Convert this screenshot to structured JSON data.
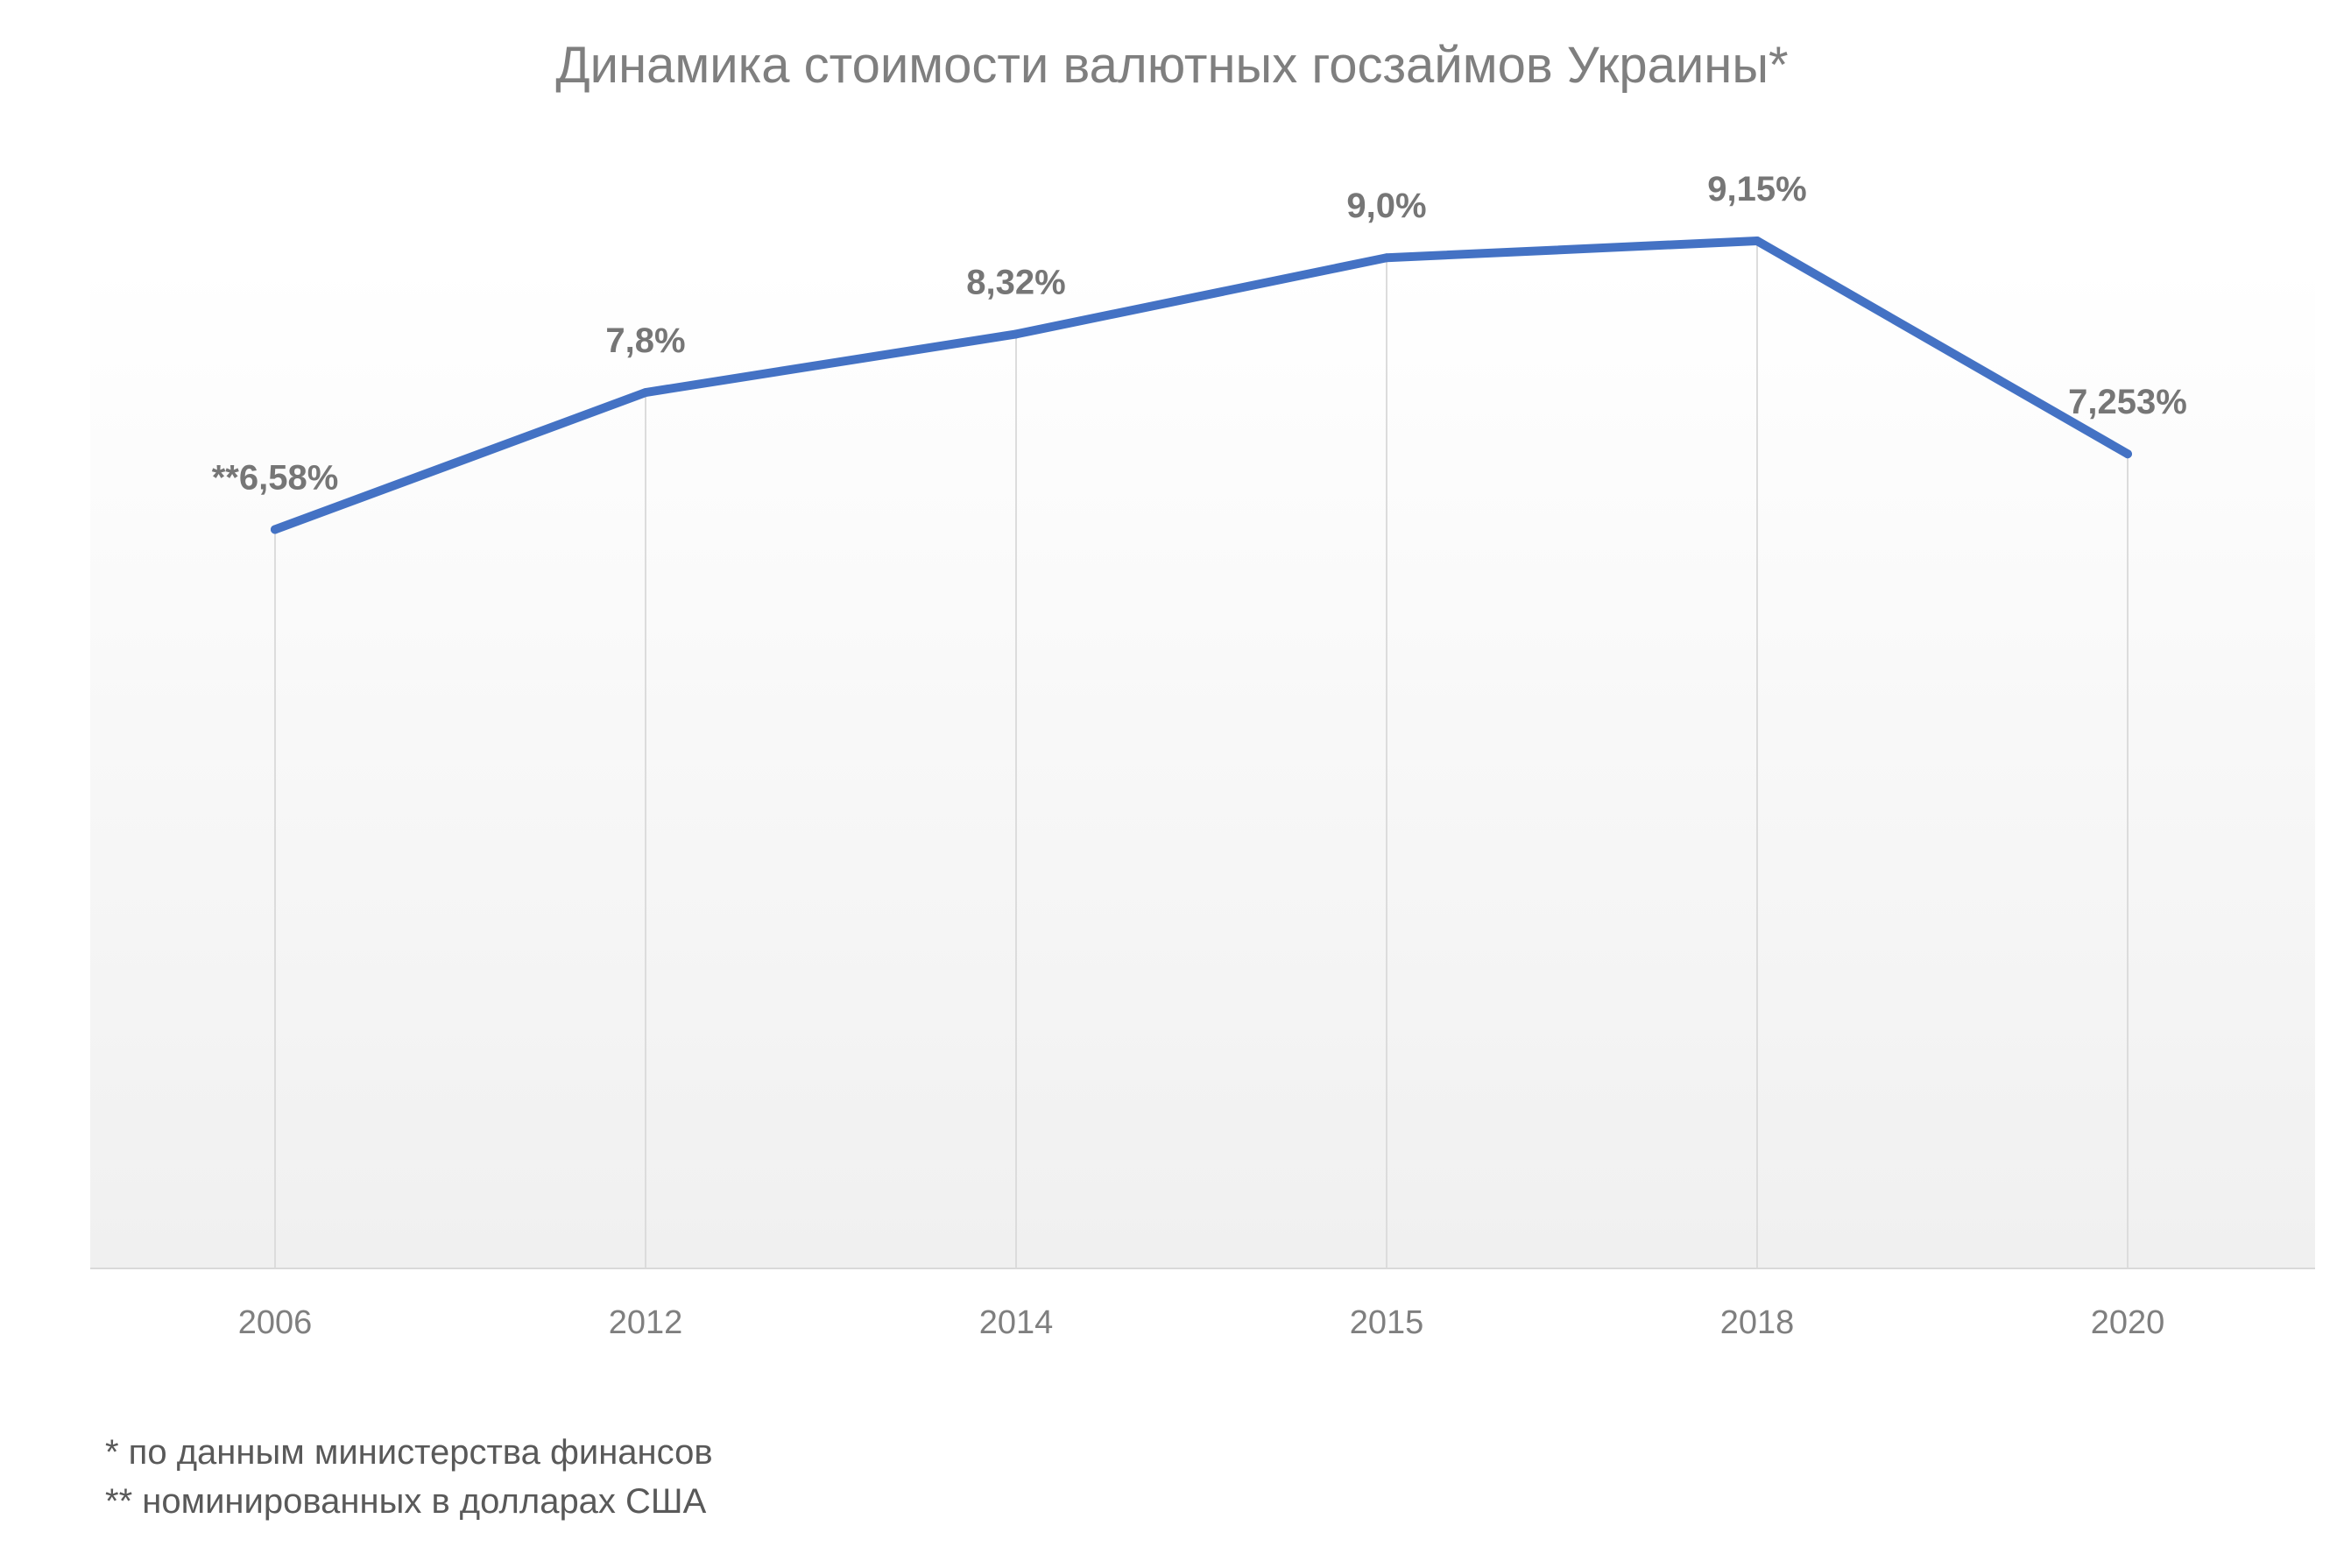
{
  "chart_data": {
    "type": "line",
    "title": "Динамика стоимости валютных госзаймов Украины*",
    "categories": [
      "2006",
      "2012",
      "2014",
      "2015",
      "2018",
      "2020"
    ],
    "series": [
      {
        "values": [
          6.58,
          7.8,
          8.32,
          9.0,
          9.15,
          7.253
        ],
        "labels": [
          "**6,58%",
          "7,8%",
          "8,32%",
          "9,0%",
          "9,15%",
          "7,253%"
        ],
        "color": "#4472c4"
      }
    ],
    "ylim": [
      0,
      9.15
    ],
    "grid": "vertical",
    "legend": "none"
  },
  "footnotes": [
    "* по данным министерства финансов",
    "** номинированных в долларах США"
  ],
  "colors": {
    "line": "#4472c4",
    "text": "#7f7f7f",
    "plot_bg_top": "#ffffff",
    "plot_bg_bottom": "#f2f2f2"
  }
}
